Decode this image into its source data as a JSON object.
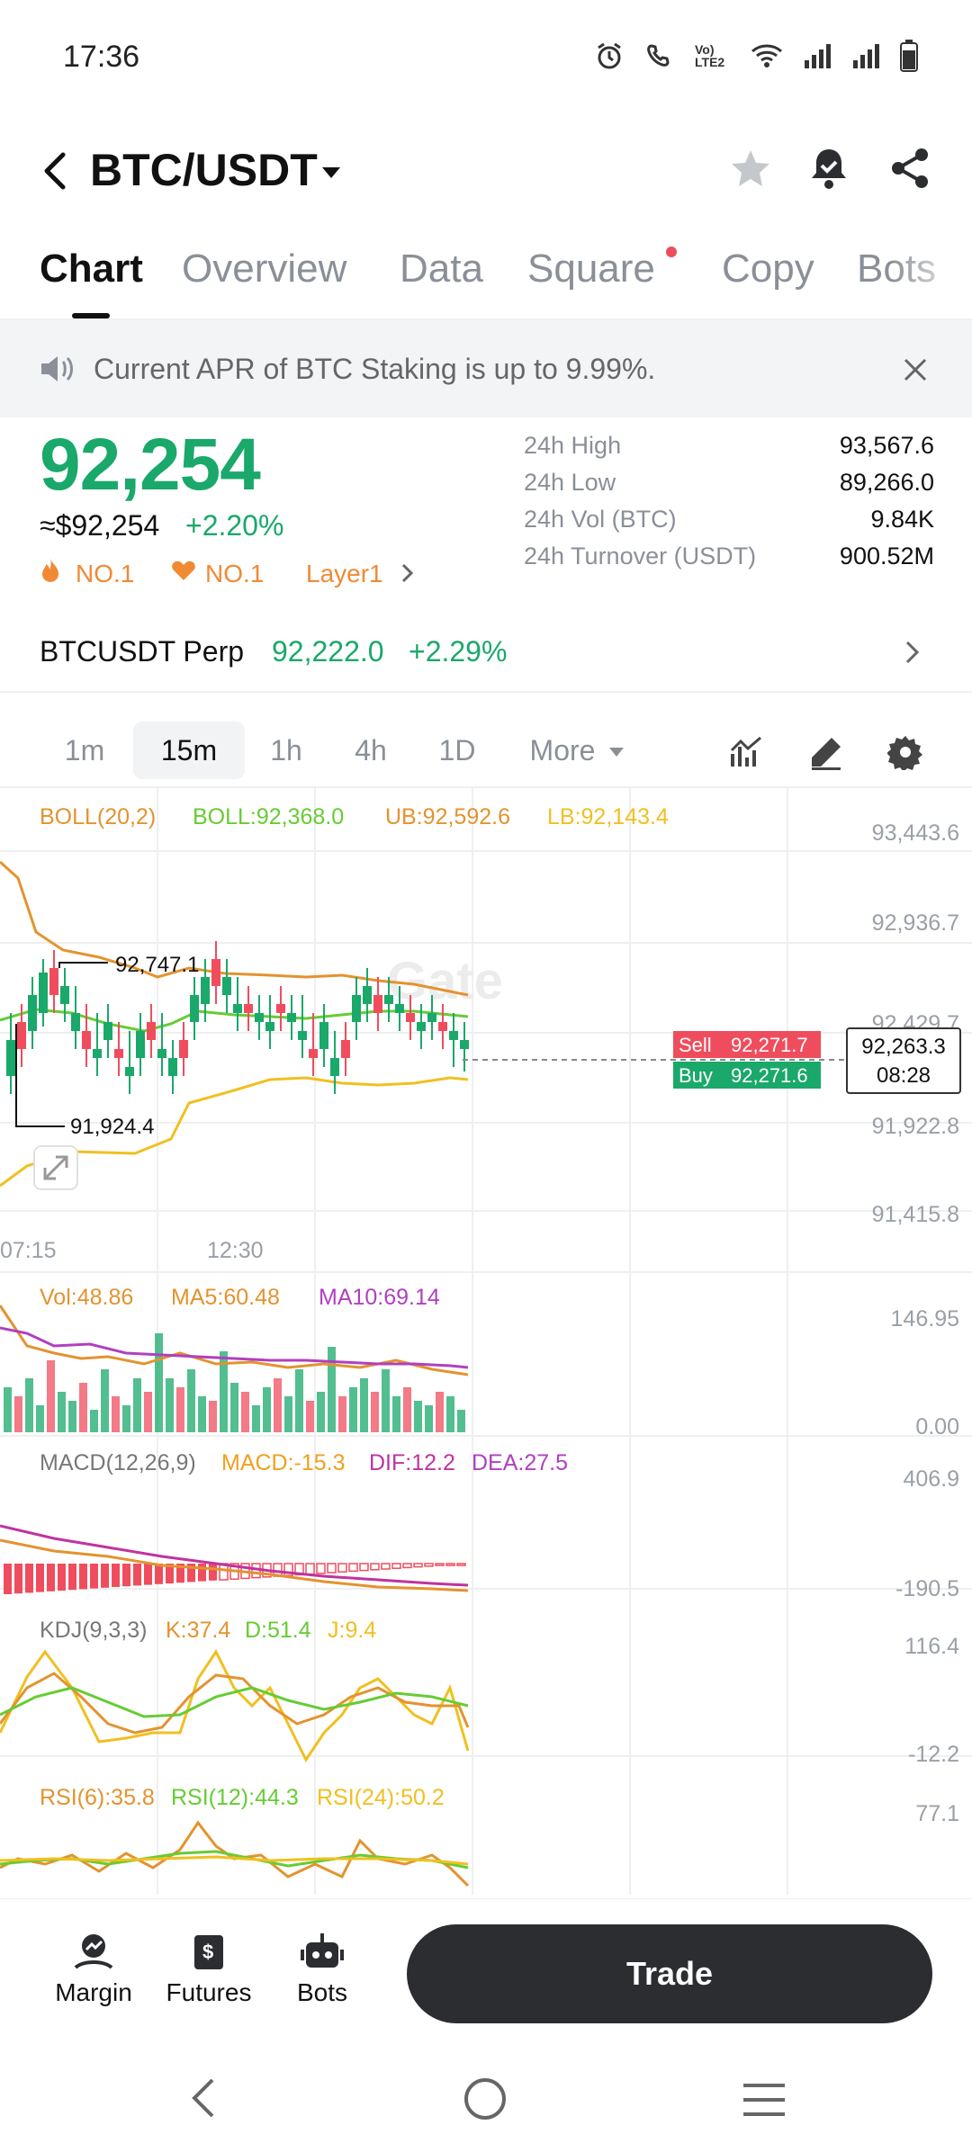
{
  "status_bar": {
    "time": "17:36",
    "volte_label": "Vo) LTE2"
  },
  "header": {
    "pair": "BTC/USDT"
  },
  "tabs": [
    {
      "label": "Chart",
      "active": true
    },
    {
      "label": "Overview"
    },
    {
      "label": "Data"
    },
    {
      "label": "Square",
      "has_dot": true
    },
    {
      "label": "Copy"
    },
    {
      "label": "Bots"
    }
  ],
  "notice": {
    "text": "Current APR of BTC Staking is up to 9.99%."
  },
  "ticker": {
    "price": "92,254",
    "usd_equiv": "≈$92,254",
    "change": "+2.20%",
    "tags": [
      "NO.1",
      "NO.1",
      "Layer1"
    ],
    "stats": [
      {
        "label": "24h High",
        "value": "93,567.6"
      },
      {
        "label": "24h Low",
        "value": "89,266.0"
      },
      {
        "label": "24h Vol (BTC)",
        "value": "9.84K"
      },
      {
        "label": "24h Turnover (USDT)",
        "value": "900.52M"
      }
    ]
  },
  "perp": {
    "name": "BTCUSDT Perp",
    "price": "92,222.0",
    "change": "+2.29%"
  },
  "intervals": [
    {
      "label": "1m"
    },
    {
      "label": "15m",
      "selected": true
    },
    {
      "label": "1h"
    },
    {
      "label": "4h"
    },
    {
      "label": "1D"
    },
    {
      "label": "More"
    }
  ],
  "main_chart": {
    "boll_name": "BOLL(20,2)",
    "boll_mid": "BOLL:92,368.0",
    "boll_ub": "UB:92,592.6",
    "boll_lb": "LB:92,143.4",
    "axis_labels": [
      "93,443.6",
      "92,936.7",
      "92,429.7",
      "91,922.8",
      "91,415.8"
    ],
    "high_marker": "92,747.1",
    "low_marker": "91,924.4",
    "time_labels": [
      "07:15",
      "12:30"
    ],
    "watermark": "Gate",
    "sell_label": "Sell",
    "sell_price": "92,271.7",
    "buy_label": "Buy",
    "buy_price": "92,271.6",
    "last_price": "92,263.3",
    "countdown": "08:28"
  },
  "volume": {
    "vol": "Vol:48.86",
    "ma5": "MA5:60.48",
    "ma10": "MA10:69.14",
    "axis_top": "146.95",
    "axis_bottom": "0.00"
  },
  "macd": {
    "name": "MACD(12,26,9)",
    "macd": "MACD:-15.3",
    "dif": "DIF:12.2",
    "dea": "DEA:27.5",
    "axis_top": "406.9",
    "axis_bottom": "-190.5"
  },
  "kdj": {
    "name": "KDJ(9,3,3)",
    "k": "K:37.4",
    "d": "D:51.4",
    "j": "J:9.4",
    "axis_top": "116.4",
    "axis_bottom": "-12.2"
  },
  "rsi": {
    "r6": "RSI(6):35.8",
    "r12": "RSI(12):44.3",
    "r24": "RSI(24):50.2",
    "axis_top": "77.1"
  },
  "bottom_bar": {
    "margin": "Margin",
    "futures": "Futures",
    "bots": "Bots",
    "trade": "Trade"
  },
  "colors": {
    "up": "#1aa86b",
    "down": "#ef4d5d",
    "boll_ub": "#e3932f",
    "boll_mid": "#66cc33",
    "boll_lb": "#f0c020",
    "ma10": "#b040c0",
    "orange_tag": "#f08a34"
  }
}
